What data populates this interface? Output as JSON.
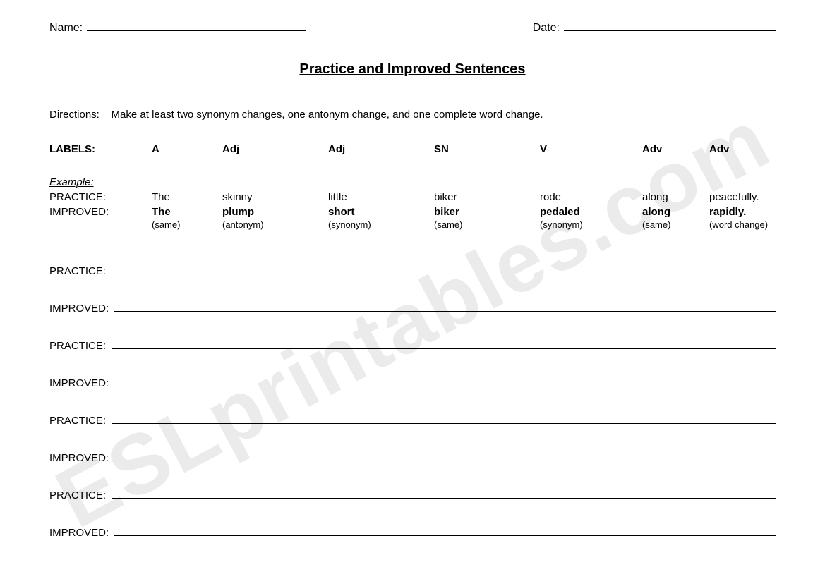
{
  "watermark": "ESLprintables.com",
  "header": {
    "name_label": "Name:",
    "date_label": "Date:"
  },
  "title": "Practice and Improved Sentences",
  "directions_label": "Directions:",
  "directions_text": "Make at least two synonym changes, one antonym change, and one complete word change.",
  "labels_heading": "LABELS:",
  "labels": [
    "A",
    "Adj",
    "Adj",
    "SN",
    "V",
    "Adv",
    "Adv"
  ],
  "example_label": "Example:",
  "practice_label": "PRACTICE:",
  "improved_label": "IMPROVED:",
  "example": {
    "practice": [
      "The",
      "skinny",
      "little",
      "biker",
      "rode",
      "along",
      "peacefully."
    ],
    "improved": [
      "The",
      "plump",
      "short",
      "biker",
      "pedaled",
      "along",
      "rapidly."
    ],
    "types": [
      "(same)",
      "(antonym)",
      "(synonym)",
      "(same)",
      "(synonym)",
      "(same)",
      "(word change)"
    ]
  },
  "blank_pairs": 4
}
